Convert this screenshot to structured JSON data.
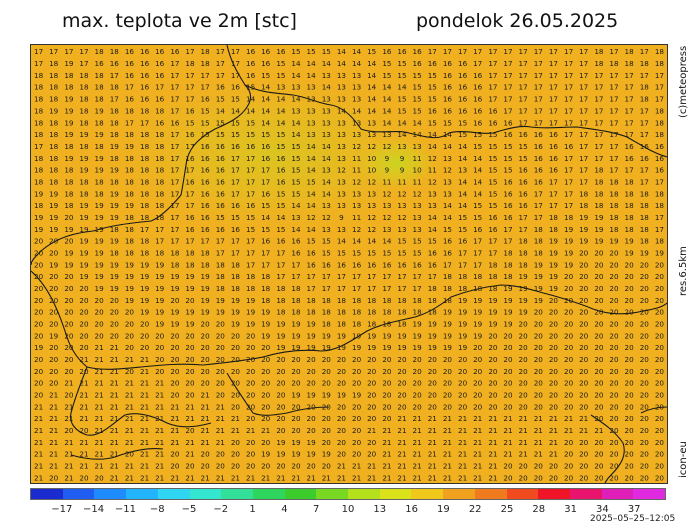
{
  "header": {
    "title": "max. teplota ve 2m [stc]",
    "date": "pondelok 26.05.2025"
  },
  "side_labels": {
    "copyright": "(c)meteopress",
    "resolution": "res.6.5km",
    "model": "icon-eu"
  },
  "timestamp": "2025–05–25–12:05",
  "colorbar": {
    "colors": [
      "#1a2ccf",
      "#1f5ef0",
      "#1e8cff",
      "#22b4ff",
      "#2fd6f2",
      "#33e6d0",
      "#33e09a",
      "#2fd65e",
      "#3ccc2c",
      "#78d822",
      "#b4e01c",
      "#dce21a",
      "#f0c81a",
      "#f0a21e",
      "#f07a1e",
      "#f04a1e",
      "#f01428",
      "#e8146e",
      "#e01eb8",
      "#e02ae0"
    ],
    "tick_labels": [
      "-17",
      "-14",
      "-11",
      "-8",
      "-5",
      "-2",
      "1",
      "4",
      "7",
      "10",
      "13",
      "16",
      "19",
      "22",
      "25",
      "28",
      "31",
      "34",
      "37"
    ]
  },
  "map": {
    "background_color": "#f0b020",
    "cool_zone_color": "#dccc20",
    "grid_values": [
      "17 17 17 17 18 18 16 16 16 16 17 18 17 17 16 16 16 15 15 15 14 14 15 16 16 16 17 17 17 17 17 17 17 17 17 17 17 18 17 18 17 18",
      "17 18 19 17 16 16 16 16 16 17 18 18 17 17 16 16 15 14 14 14 14 14 14 15 15 16 16 16 16 17 17 17 17 17 17 17 17 18 18 18 18 18",
      "18 18 18 18 18 17 16 16 16 17 17 17 17 17 16 15 15 14 14 13 13 13 14 15 15 15 15 16 16 16 17 17 17 17 17 17 17 17 17 17 17 17",
      "18 18 18 18 18 18 17 16 17 17 17 17 16 16 15 14 13 13 13 14 13 13 14 14 14 15 15 16 16 16 17 17 17 17 17 17 17 17 17 17 18 17",
      "18 18 19 18 18 17 16 16 16 17 17 16 15 15 14 14 14 14 13 13 13 13 14 14 15 15 15 16 16 16 17 17 17 17 17 17 17 17 17 17 18 17",
      "18 19 19 18 19 18 18 18 18 17 16 15 14 14 14 14 14 13 13 13 14 14 14 14 15 15 16 16 16 16 16 17 17 17 17 17 17 17 17 17 17 18",
      "18 18 19 18 18 18 17 17 16 16 15 15 15 15 15 14 14 14 13 13 13 13 13 14 14 14 15 15 15 16 16 16 17 17 17 17 17 17 17 17 17 18",
      "18 18 19 19 19 18 18 18 18 17 16 15 15 15 15 15 15 14 13 13 13 13 13 13 14 14 14 14 15 15 15 16 16 16 16 17 17 17 17 17 17 18",
      "17 18 18 18 18 19 19 18 18 17 17 16 16 16 16 16 15 15 14 14 13 12 12 12 13 13 14 14 14 15 15 15 15 16 16 16 17 17 17 16 16 16",
      "18 18 19 19 19 18 18 18 18 17 16 16 16 17 17 16 16 15 14 14 13 11 10 9 9 11 12 13 14 14 15 15 15 16 16 17 17 17 17 16 16 16",
      "18 18 18 19 19 19 18 18 18 17 17 16 16 17 17 17 16 15 14 13 12 11 10 9 9 10 11 12 13 14 15 15 16 16 16 17 17 18 17 17 17 16",
      "18 18 18 18 18 18 18 18 18 17 16 16 16 17 17 17 16 15 15 14 13 12 12 11 11 11 12 13 14 14 15 16 16 16 17 17 17 18 18 18 17 17",
      "19 19 18 18 18 19 18 18 18 17 17 16 16 17 17 16 15 15 14 14 13 13 13 12 12 12 13 13 14 14 15 16 16 17 17 17 18 18 18 18 18 18",
      "18 19 18 19 19 19 19 18 18 17 17 16 16 16 16 15 15 14 14 13 13 13 13 13 13 13 13 14 14 15 15 16 16 17 17 17 18 18 18 18 18 18",
      "19 19 20 19 19 19 18 18 18 17 16 16 15 15 15 14 14 13 12 12 9 11 12 12 12 13 14 14 15 15 16 16 17 17 18 18 19 19 18 18 18 17",
      "19 19 19 19 19 18 18 17 17 17 16 16 16 16 15 15 15 14 14 13 13 12 12 13 13 13 14 15 15 16 16 17 17 18 18 19 19 19 18 18 18 17",
      "20 20 20 19 19 19 18 18 17 17 17 17 17 17 17 16 16 16 15 15 14 14 14 14 15 15 15 16 16 17 17 17 18 18 19 19 19 19 19 19 18 18",
      "20 20 19 19 19 18 18 18 18 18 18 18 17 17 17 17 17 16 16 15 15 15 15 15 15 15 16 16 17 17 17 18 18 18 19 19 20 20 20 19 19 19",
      "20 19 19 19 19 19 19 19 19 18 18 18 18 18 17 17 17 17 16 16 16 16 16 16 16 16 16 17 17 17 18 18 18 19 19 19 20 20 20 20 20 20",
      "20 20 20 19 19 19 19 19 19 19 19 19 18 18 18 18 17 17 17 17 17 17 17 17 17 17 17 18 18 18 18 18 19 19 19 20 20 20 20 20 20 20",
      "20 20 20 20 19 19 19 19 19 19 19 19 18 18 18 18 18 18 17 17 17 17 17 17 17 17 18 18 18 18 18 19 19 19 19 20 20 20 20 20 20 20",
      "20 20 20 20 20 20 19 19 19 20 20 19 19 19 19 18 18 18 18 18 18 18 18 18 18 18 18 18 19 19 19 19 19 19 20 20 20 20 20 20 20 20",
      "20 20 20 20 20 20 20 19 19 19 19 19 19 19 19 19 18 18 18 18 18 18 18 18 18 18 18 19 19 19 19 19 19 20 20 20 20 20 20 20 20 20",
      "20 20 20 20 20 20 20 20 19 19 19 20 20 19 19 19 19 19 19 18 18 18 18 18 18 19 19 19 19 19 19 19 20 20 20 20 20 20 20 20 20 20",
      "20 19 20 20 20 20 20 20 20 20 20 20 20 20 20 19 19 19 19 19 19 19 19 19 19 19 19 19 19 19 20 20 20 20 20 20 20 20 20 20 20 20",
      "19 20 20 20 21 21 20 20 20 20 20 20 20 20 20 20 19 19 19 19 19 19 19 19 19 19 19 19 19 20 20 20 20 20 20 20 20 20 20 20 20 20",
      "20 20 20 21 21 21 21 21 20 20 20 20 20 20 20 20 20 20 20 20 20 20 20 20 20 20 20 20 20 20 20 20 20 20 20 20 20 20 20 20 20 20",
      "20 20 20 20 21 21 20 21 20 20 20 20 20 20 20 20 20 20 20 20 20 20 20 20 20 20 20 20 20 20 20 20 20 20 20 20 20 20 20 20 20 20",
      "20 20 21 21 21 21 21 21 21 20 20 20 20 20 20 20 20 20 20 20 20 20 20 20 20 20 20 20 20 20 20 20 20 20 20 20 20 20 20 20 20 20",
      "20 21 20 21 21 21 21 21 21 20 20 21 20 20 20 20 20 19 19 19 19 19 20 20 20 20 20 20 20 20 20 20 20 20 20 20 20 20 20 20 20 20",
      "21 21 21 21 21 21 21 21 21 21 21 21 21 20 20 20 20 20 20 20 20 20 20 20 20 20 20 20 20 20 20 20 20 20 20 20 20 20 20 20 20 20",
      "21 21 21 21 21 21 21 21 21 21 21 21 21 21 20 20 20 20 20 20 20 20 20 20 21 21 21 21 21 21 21 21 21 21 21 21 21 20 20 20 20 20",
      "21 21 20 20 21 21 21 21 21 21 20 21 21 21 21 21 20 20 20 20 20 20 21 21 21 21 21 21 21 21 21 21 21 21 21 21 21 21 20 20 20 20",
      "21 21 21 21 21 21 21 21 21 21 21 21 21 20 20 20 19 19 19 20 20 20 20 21 21 21 21 21 21 21 21 21 21 21 21 20 20 20 20 20 20 20",
      "21 21 21 21 21 21 20 21 21 20 21 20 20 20 20 19 19 19 19 19 20 20 20 21 21 21 21 21 21 21 21 21 21 21 21 20 20 20 20 20 20 20",
      "21 21 21 21 21 21 21 21 21 20 20 20 20 20 20 20 20 20 20 20 21 21 21 21 21 21 21 21 21 21 21 20 20 20 20 20 20 20 20 20 20 20",
      "21 20 21 20 20 21 21 21 21 21 21 21 21 21 21 21 21 21 21 21 21 21 21 21 21 21 21 21 21 21 21 20 20 20 20 20 20 20 20 20 20 20"
    ]
  }
}
